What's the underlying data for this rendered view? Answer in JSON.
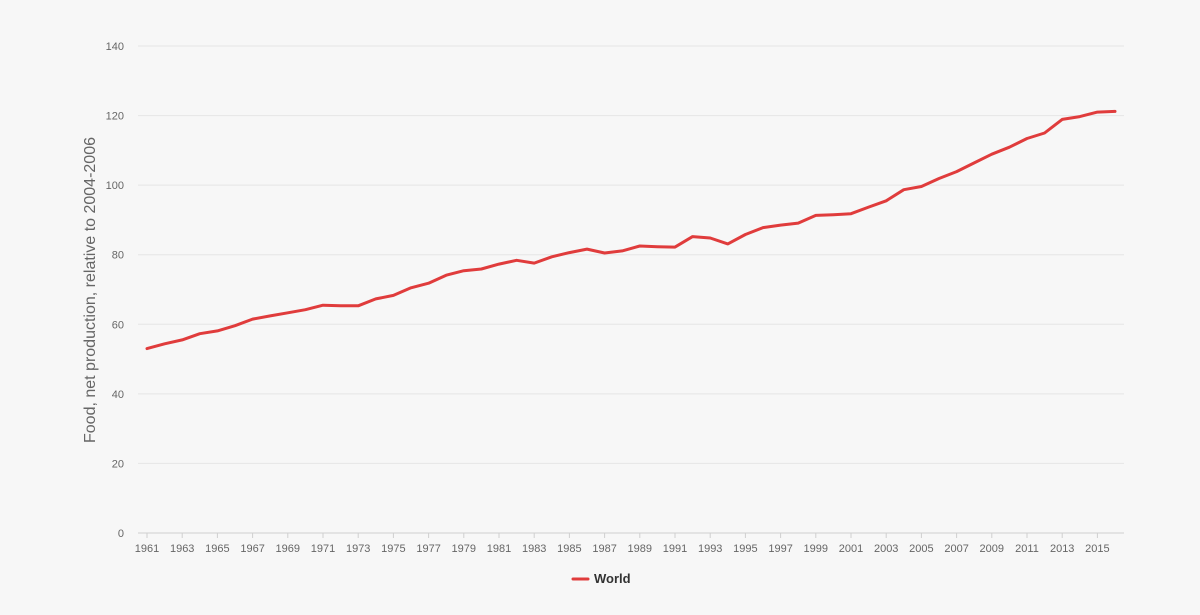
{
  "chart_data": {
    "type": "line",
    "title": "",
    "xlabel": "",
    "ylabel": "Food, net production, relative to 2004-2006",
    "ylim": [
      0,
      140
    ],
    "xlim": [
      1961,
      2016
    ],
    "grid": true,
    "legend": "bottom-center",
    "y_ticks": [
      "0",
      "20",
      "40",
      "60",
      "80",
      "100",
      "120",
      "140"
    ],
    "x_ticks": [
      "1961",
      "1963",
      "1965",
      "1967",
      "1969",
      "1971",
      "1973",
      "1975",
      "1977",
      "1979",
      "1981",
      "1983",
      "1985",
      "1987",
      "1989",
      "1991",
      "1993",
      "1995",
      "1997",
      "1999",
      "2001",
      "2003",
      "2005",
      "2007",
      "2009",
      "2011",
      "2013",
      "2015"
    ],
    "x": [
      1961,
      1962,
      1963,
      1964,
      1965,
      1966,
      1967,
      1968,
      1969,
      1970,
      1971,
      1972,
      1973,
      1974,
      1975,
      1976,
      1977,
      1978,
      1979,
      1980,
      1981,
      1982,
      1983,
      1984,
      1985,
      1986,
      1987,
      1988,
      1989,
      1990,
      1991,
      1992,
      1993,
      1994,
      1995,
      1996,
      1997,
      1998,
      1999,
      2000,
      2001,
      2002,
      2003,
      2004,
      2005,
      2006,
      2007,
      2008,
      2009,
      2010,
      2011,
      2012,
      2013,
      2014,
      2015,
      2016
    ],
    "series": [
      {
        "name": "World",
        "color": "#e03c3c",
        "values": [
          53.0,
          54.4,
          55.5,
          57.3,
          58.1,
          59.6,
          61.5,
          62.4,
          63.3,
          64.2,
          65.5,
          65.3,
          65.3,
          67.3,
          68.3,
          70.5,
          71.8,
          74.1,
          75.4,
          75.9,
          77.3,
          78.4,
          77.6,
          79.4,
          80.6,
          81.6,
          80.5,
          81.1,
          82.5,
          82.3,
          82.2,
          85.2,
          84.8,
          83.1,
          85.8,
          87.8,
          88.5,
          89.1,
          91.3,
          91.5,
          91.8,
          93.7,
          95.5,
          98.7,
          99.6,
          101.9,
          103.9,
          106.4,
          108.9,
          110.9,
          113.4,
          115.0,
          118.9,
          119.7,
          121.0,
          121.2
        ]
      }
    ]
  }
}
